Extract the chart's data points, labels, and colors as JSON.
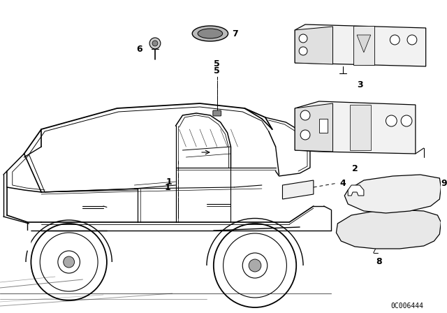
{
  "bg_color": "#ffffff",
  "line_color": "#000000",
  "fig_width": 6.4,
  "fig_height": 4.48,
  "dpi": 100,
  "catalog_number": "0C006444",
  "lw_main": 1.0,
  "lw_thin": 0.6,
  "lw_thick": 1.4
}
